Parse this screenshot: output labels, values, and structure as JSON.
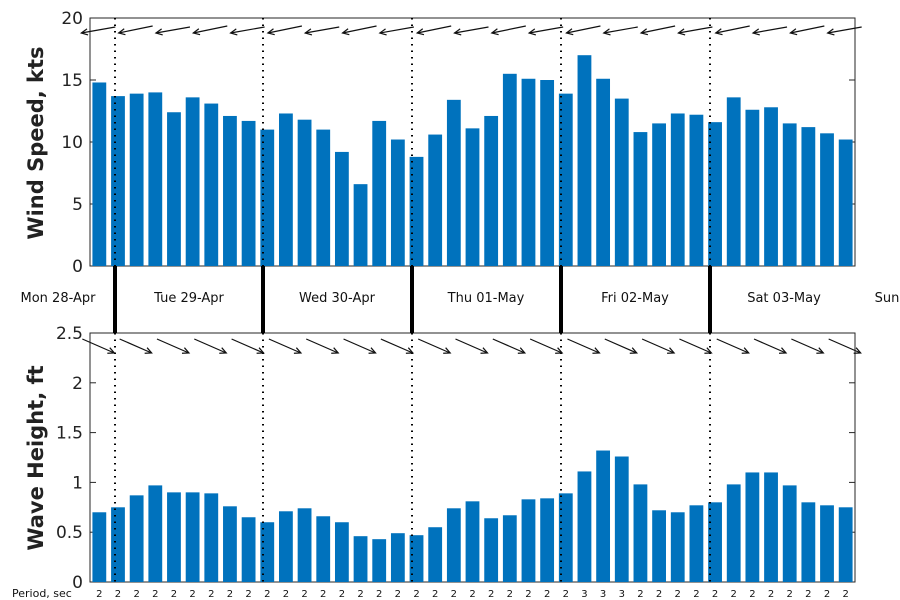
{
  "chart_data": [
    {
      "type": "bar",
      "ylabel": "Wind Speed, kts",
      "ylim": [
        0,
        20
      ],
      "yticks": [
        "0",
        "5",
        "10",
        "15",
        "20"
      ],
      "color": "#0072BD",
      "values": [
        14.8,
        13.7,
        13.9,
        14.0,
        12.4,
        13.6,
        13.1,
        12.1,
        11.7,
        11.0,
        12.3,
        11.8,
        11.0,
        9.2,
        6.6,
        11.7,
        10.2,
        8.8,
        10.6,
        13.4,
        11.1,
        12.1,
        15.5,
        15.1,
        15.0,
        13.9,
        17.0,
        15.1,
        13.5,
        10.8,
        11.5,
        12.3,
        12.2,
        11.6,
        13.6,
        12.6,
        12.8,
        11.5,
        11.2,
        10.7,
        10.2
      ],
      "direction_arrows": "wind direction arrows, 4 per day, pointing roughly west"
    },
    {
      "type": "bar",
      "ylabel": "Wave Height, ft",
      "ylim": [
        0,
        2.5
      ],
      "yticks": [
        "0",
        "0.5",
        "1",
        "1.5",
        "2",
        "2.5"
      ],
      "color": "#0072BD",
      "values": [
        0.7,
        0.75,
        0.87,
        0.97,
        0.9,
        0.9,
        0.89,
        0.76,
        0.65,
        0.6,
        0.71,
        0.74,
        0.66,
        0.6,
        0.46,
        0.43,
        0.49,
        0.47,
        0.55,
        0.74,
        0.81,
        0.64,
        0.67,
        0.83,
        0.84,
        0.89,
        1.11,
        1.32,
        1.26,
        0.98,
        0.72,
        0.7,
        0.77,
        0.8,
        0.98,
        1.1,
        1.1,
        0.97,
        0.8,
        0.77,
        0.75
      ],
      "direction_arrows": "wave direction arrows, 4 per day, pointing down-right"
    }
  ],
  "days": [
    "Mon 28-Apr",
    "Tue 29-Apr",
    "Wed 30-Apr",
    "Thu 01-May",
    "Fri 02-May",
    "Sat 03-May",
    "Sun"
  ],
  "period_label": "Period, sec",
  "periods": [
    "2",
    "2",
    "2",
    "2",
    "2",
    "2",
    "2",
    "2",
    "2",
    "2",
    "2",
    "2",
    "2",
    "2",
    "2",
    "2",
    "2",
    "2",
    "2",
    "2",
    "2",
    "2",
    "2",
    "2",
    "2",
    "2",
    "3",
    "3",
    "3",
    "2",
    "2",
    "2",
    "2",
    "2",
    "2",
    "2",
    "2",
    "2",
    "2",
    "2",
    "2"
  ]
}
